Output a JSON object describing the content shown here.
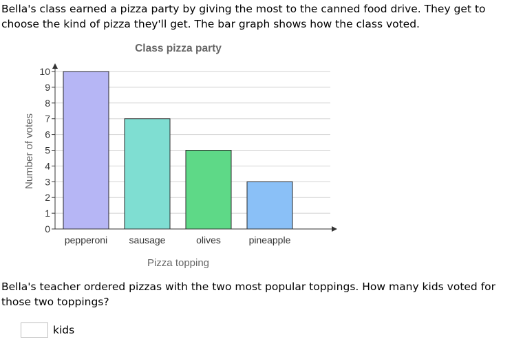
{
  "problem": {
    "intro": "Bella's class earned a pizza party by giving the most to the canned food drive. They get to choose the kind of pizza they'll get. The bar graph shows how the class voted.",
    "question": "Bella's teacher ordered pizzas with the two most popular toppings. How many kids voted for those two toppings?",
    "answer_value": "",
    "answer_unit": "kids"
  },
  "chart_data": {
    "type": "bar",
    "title": "Class pizza party",
    "xlabel": "Pizza topping",
    "ylabel": "Number of votes",
    "categories": [
      "pepperoni",
      "sausage",
      "olives",
      "pineapple"
    ],
    "values": [
      10,
      7,
      5,
      3
    ],
    "colors": [
      "#b6b6f5",
      "#7fded2",
      "#5ed987",
      "#8ac0f7"
    ],
    "ylim": [
      0,
      10
    ],
    "yticks": [
      0,
      1,
      2,
      3,
      4,
      5,
      6,
      7,
      8,
      9,
      10
    ],
    "grid": true
  }
}
